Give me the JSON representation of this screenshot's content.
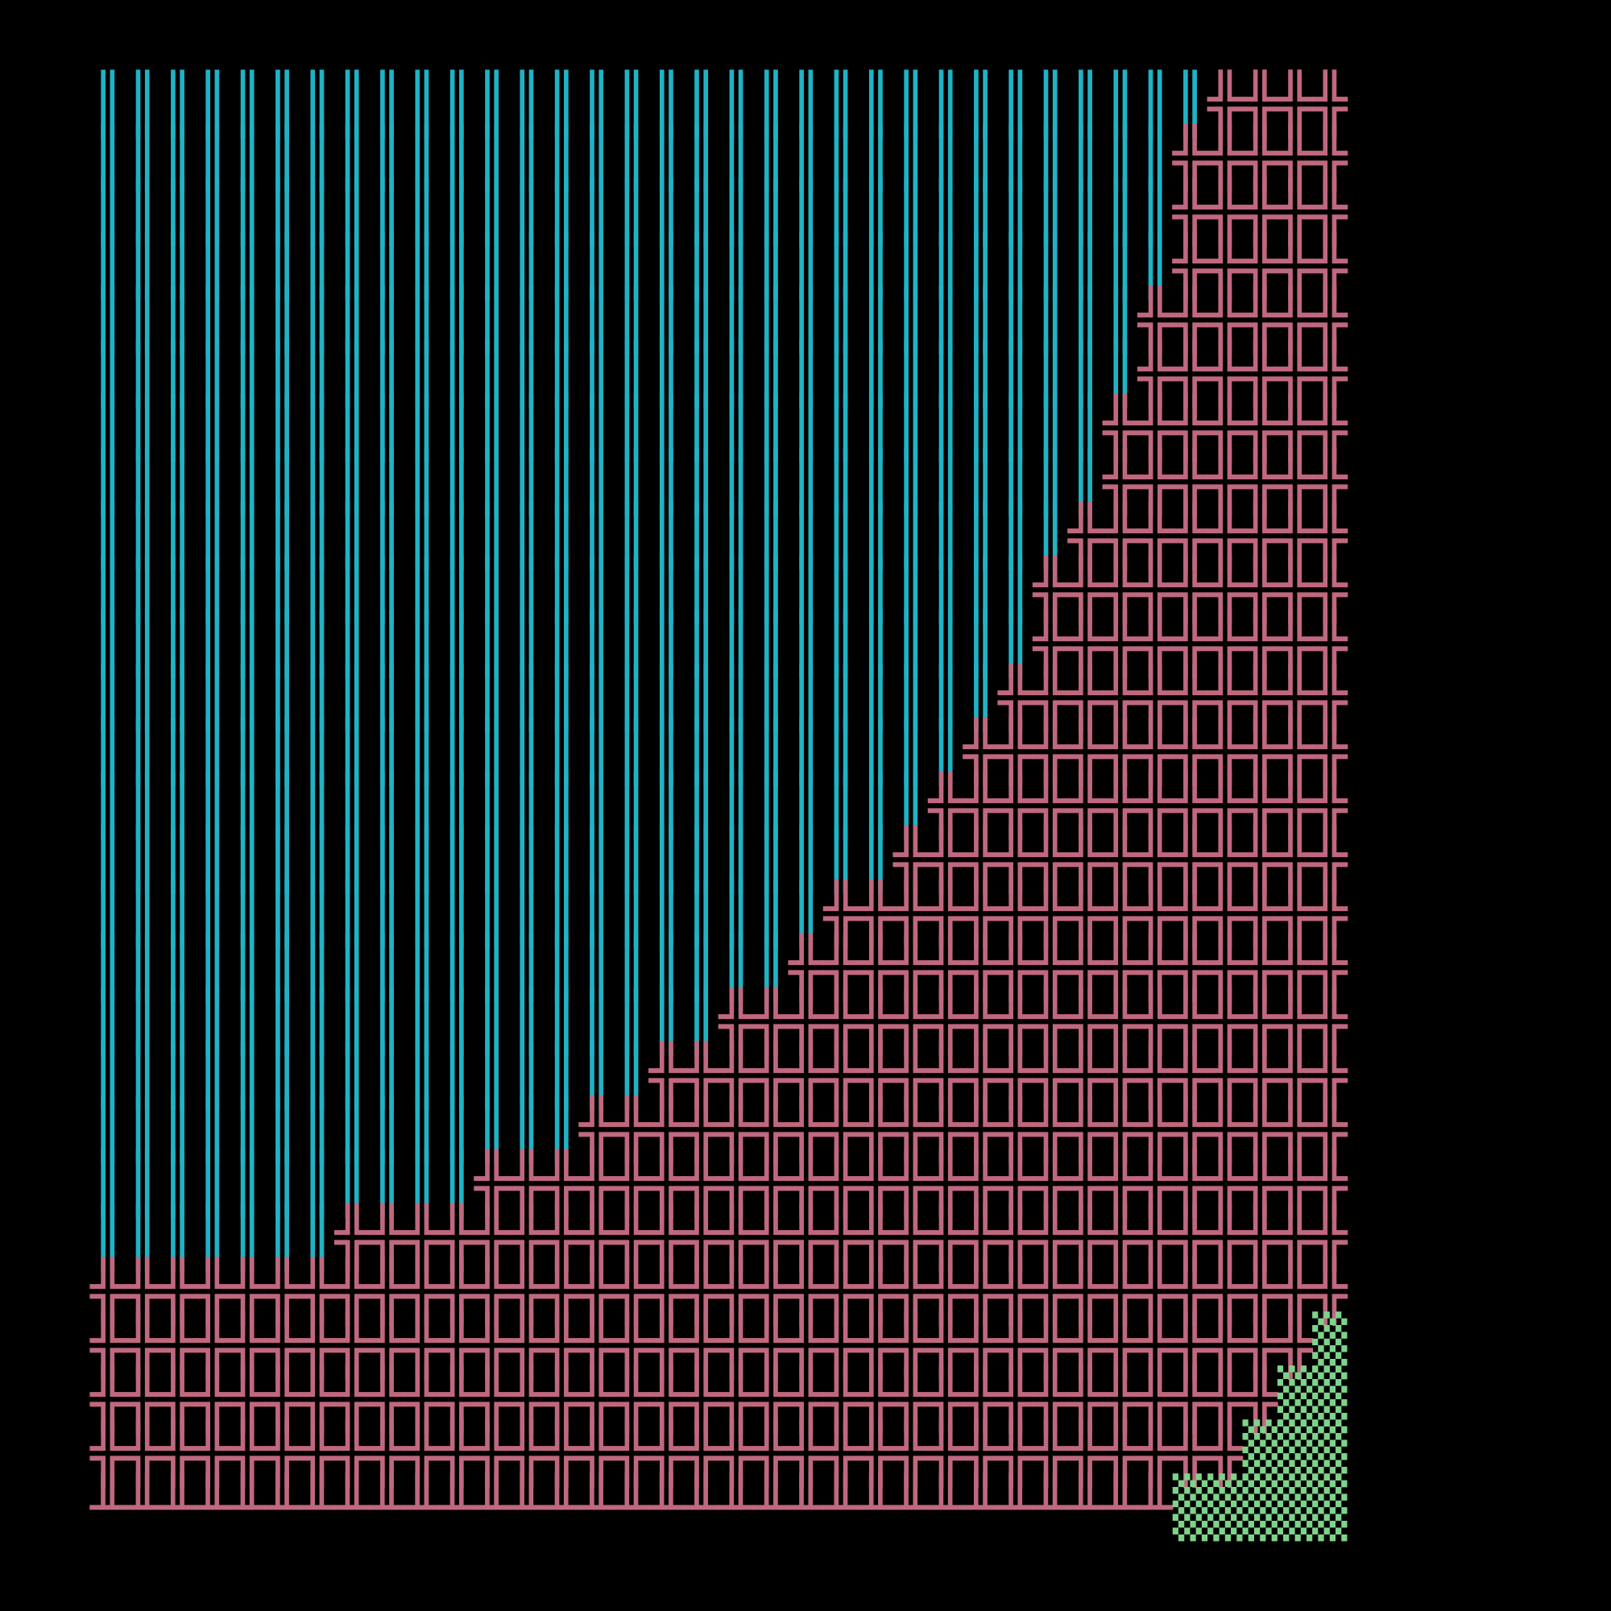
{
  "colors": {
    "background": "#000000",
    "cyan": "#1fb3c6",
    "pink": "#c0687e",
    "green": "#7ed38a"
  },
  "glyphs": {
    "cyan": "║",
    "pink": "╬",
    "pink_bottom": "╨",
    "green": "▒"
  },
  "grid": {
    "columns": 36,
    "rows": 27,
    "cyan_counts": [
      32,
      31,
      31,
      31,
      30,
      30,
      29,
      29,
      28,
      27,
      27,
      26,
      25,
      24,
      23,
      21,
      20,
      18,
      16,
      14,
      11,
      7,
      0,
      0,
      0,
      0,
      0
    ],
    "green_counts": [
      0,
      0,
      0,
      0,
      0,
      0,
      0,
      0,
      0,
      0,
      0,
      0,
      0,
      0,
      0,
      0,
      0,
      0,
      0,
      0,
      0,
      0,
      0,
      1,
      2,
      3,
      5
    ],
    "bottom_row_glyph": "pink_bottom"
  }
}
